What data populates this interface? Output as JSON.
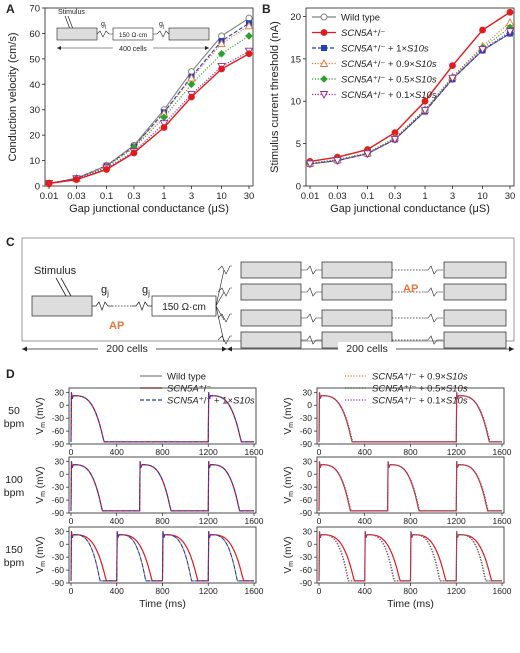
{
  "panels": {
    "a": "A",
    "b": "B",
    "c": "C",
    "d": "D"
  },
  "colors": {
    "wt": "#808080",
    "mut": "#e41a1c",
    "s1": "#1f3fbf",
    "s09": "#e8743b",
    "s05": "#2ca02c",
    "s01": "#9b2a9b"
  },
  "legend_b": [
    {
      "key": "wt",
      "label": "Wild type",
      "marker": "circle-open",
      "dash": "solid"
    },
    {
      "key": "mut",
      "label": "SCN5A⁺/⁻",
      "marker": "circle",
      "dash": "solid"
    },
    {
      "key": "s1",
      "label": "SCN5A⁺/⁻ + 1×S10s",
      "marker": "square",
      "dash": "dash"
    },
    {
      "key": "s09",
      "label": "SCN5A⁺/⁻ + 0.9×S10s",
      "marker": "triangle-open",
      "dash": "dot"
    },
    {
      "key": "s05",
      "label": "SCN5A⁺/⁻ + 0.5×S10s",
      "marker": "diamond",
      "dash": "dot"
    },
    {
      "key": "s01",
      "label": "SCN5A⁺/⁻ + 0.1×S10s",
      "marker": "triangle-down-open",
      "dash": "dot"
    }
  ],
  "chart_data": [
    {
      "id": "A",
      "type": "line",
      "xlabel": "Gap junctional conductance (μS)",
      "ylabel": "Conduction velocity (cm/s)",
      "x": [
        0.01,
        0.03,
        0.1,
        0.3,
        1,
        3,
        10,
        30
      ],
      "x_ticks": [
        "0.01",
        "0.03",
        "0.1",
        "0.3",
        "1",
        "3",
        "10",
        "30"
      ],
      "y_ticks": [
        0,
        10,
        20,
        30,
        40,
        50,
        60,
        70
      ],
      "ylim": [
        0,
        70
      ],
      "xscale": "log",
      "series": [
        {
          "key": "wt",
          "values": [
            1,
            3,
            8,
            16,
            30,
            45,
            59,
            66
          ]
        },
        {
          "key": "s1",
          "values": [
            1,
            3,
            8,
            15.5,
            29,
            43,
            57,
            64
          ]
        },
        {
          "key": "s09",
          "values": [
            1,
            3,
            8,
            15.5,
            28.5,
            42.5,
            56,
            63
          ]
        },
        {
          "key": "s05",
          "values": [
            1,
            3,
            7.5,
            15,
            27,
            40,
            52,
            59
          ]
        },
        {
          "key": "s01",
          "values": [
            1,
            2.8,
            7,
            13.5,
            24.5,
            36,
            47,
            53
          ]
        },
        {
          "key": "mut",
          "values": [
            1,
            2.5,
            6.5,
            13,
            23,
            35,
            46,
            52
          ]
        }
      ],
      "inset": {
        "stimulus": "Stimulus",
        "gj": "g",
        "gj_sub": "j",
        "resistor": "150 Ω·cm",
        "cells": "400 cells"
      }
    },
    {
      "id": "B",
      "type": "line",
      "xlabel": "Gap junctional conductance (μS)",
      "ylabel": "Stimulus current threshold (nA)",
      "x": [
        0.01,
        0.03,
        0.1,
        0.3,
        1,
        3,
        10,
        30
      ],
      "x_ticks": [
        "0.01",
        "0.03",
        "0.1",
        "0.3",
        "1",
        "3",
        "10",
        "30"
      ],
      "y_ticks": [
        0,
        5,
        10,
        15,
        20
      ],
      "ylim": [
        0,
        21
      ],
      "xscale": "log",
      "series": [
        {
          "key": "wt",
          "values": [
            2.6,
            3.0,
            3.8,
            5.5,
            8.8,
            12.6,
            16.0,
            18.0
          ]
        },
        {
          "key": "mut",
          "values": [
            2.9,
            3.4,
            4.3,
            6.3,
            10.0,
            14.2,
            18.4,
            20.5
          ]
        },
        {
          "key": "s1",
          "values": [
            2.6,
            3.0,
            3.8,
            5.5,
            8.8,
            12.6,
            16.0,
            18.0
          ]
        },
        {
          "key": "s09",
          "values": [
            2.7,
            3.1,
            3.9,
            5.7,
            9.0,
            12.9,
            16.5,
            19.3
          ]
        },
        {
          "key": "s05",
          "values": [
            2.7,
            3.1,
            3.9,
            5.6,
            9.0,
            12.8,
            16.3,
            18.7
          ]
        },
        {
          "key": "s01",
          "values": [
            2.6,
            3.0,
            3.8,
            5.5,
            8.9,
            12.7,
            16.1,
            18.2
          ]
        }
      ]
    },
    {
      "id": "D",
      "type": "line",
      "rows": [
        "50\nbpm",
        "100\nbpm",
        "150\nbpm"
      ],
      "row_labels": [
        "50",
        "100",
        "150"
      ],
      "row_unit": "bpm",
      "ylabel": "V",
      "ylabel_sub": "m",
      "ylabel_unit": " (mV)",
      "xlabel": "Time (ms)",
      "x_ticks": [
        "0",
        "400",
        "800",
        "1200",
        "1600"
      ],
      "y_ticks": [
        "30",
        "0",
        "-30",
        "-60",
        "-90"
      ],
      "xlim": [
        0,
        1600
      ],
      "ylim": [
        -90,
        40
      ],
      "legend_left": [
        {
          "key": "wt",
          "label": "Wild type",
          "dash": "solid"
        },
        {
          "key": "mut",
          "label": "SCN5A⁺/⁻",
          "dash": "solid"
        },
        {
          "key": "s1",
          "label": "SCN5A⁺/⁻ + 1×S10s",
          "dash": "dash"
        }
      ],
      "legend_right": [
        {
          "key": "s09",
          "label": "SCN5A⁺/⁻ + 0.9×S10s",
          "dash": "dot"
        },
        {
          "key": "s05",
          "label": "SCN5A⁺/⁻ + 0.5×S10s",
          "dash": "dot"
        },
        {
          "key": "s01",
          "label": "SCN5A⁺/⁻ + 0.1×S10s",
          "dash": "dot"
        }
      ],
      "beats": {
        "50": [
          0,
          1200
        ],
        "100": [
          0,
          600,
          1200
        ],
        "150": [
          0,
          400,
          800,
          1200
        ]
      },
      "apd_ms": {
        "50": 290,
        "100": 275,
        "150": 255
      }
    }
  ],
  "diagram_c": {
    "stimulus": "Stimulus",
    "gj": "g",
    "gj_sub": "j",
    "ap": "AP",
    "resistor": "150 Ω·cm",
    "left_cells": "200 cells",
    "right_cells": "200 cells"
  }
}
